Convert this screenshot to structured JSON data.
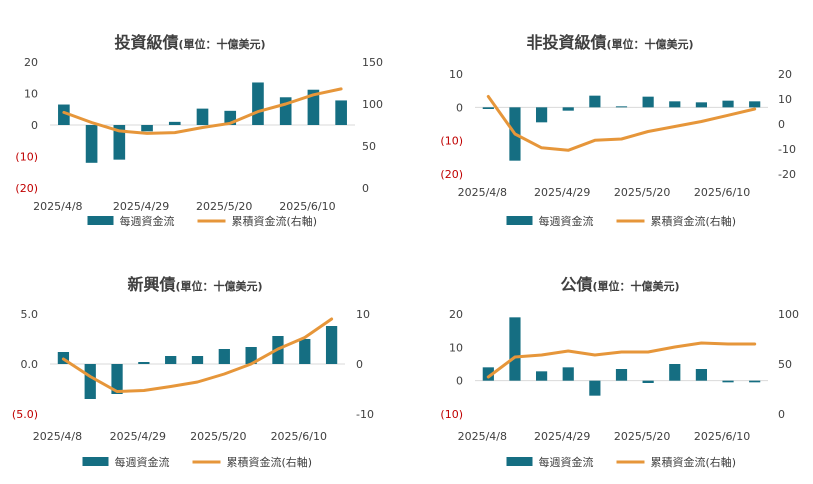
{
  "colors": {
    "bar": "#156E82",
    "line": "#E6963A",
    "text": "#404040",
    "negative_tick": "#C00000",
    "axis": "#D9D9D9"
  },
  "legend": {
    "bar_label": "每週資金流",
    "line_label": "累積資金流(右軸)"
  },
  "chart_data": [
    {
      "type": "bar+line",
      "title": "投資級債",
      "subtitle": "(單位：十億美元)",
      "x_tick_labels": [
        "2025/4/8",
        "2025/4/29",
        "2025/5/20",
        "2025/6/10"
      ],
      "left_axis": {
        "ylim": [
          -20,
          20
        ],
        "ticks": [
          "20",
          "10",
          "0",
          "(10)",
          "(20)"
        ]
      },
      "right_axis": {
        "ylim": [
          0,
          150
        ],
        "ticks": [
          "150",
          "100",
          "50",
          "0"
        ]
      },
      "series": [
        {
          "name": "每週資金流",
          "type": "bar",
          "axis": "left",
          "values": [
            6.5,
            -12.0,
            -11.0,
            -2.0,
            1.0,
            5.2,
            4.5,
            13.5,
            8.8,
            11.2,
            7.8
          ]
        },
        {
          "name": "累積資金流(右軸)",
          "type": "line",
          "axis": "right",
          "values": [
            90,
            78,
            68,
            65,
            66,
            72,
            77,
            91,
            100,
            111,
            118
          ]
        }
      ]
    },
    {
      "type": "bar+line",
      "title": "非投資級債",
      "subtitle": "(單位：十億美元)",
      "x_tick_labels": [
        "2025/4/8",
        "2025/4/29",
        "2025/5/20",
        "2025/6/10"
      ],
      "left_axis": {
        "ylim": [
          -20,
          10
        ],
        "ticks": [
          "10",
          "0",
          "(10)",
          "(20)"
        ]
      },
      "right_axis": {
        "ylim": [
          -20,
          20
        ],
        "ticks": [
          "20",
          "10",
          "0",
          "-10",
          "-20"
        ]
      },
      "series": [
        {
          "name": "每週資金流",
          "type": "bar",
          "axis": "left",
          "values": [
            -0.5,
            -16.0,
            -4.5,
            -1.0,
            3.5,
            0.3,
            3.2,
            1.8,
            1.5,
            2.0,
            1.8
          ]
        },
        {
          "name": "累積資金流(右軸)",
          "type": "line",
          "axis": "right",
          "values": [
            11,
            -4,
            -9.5,
            -10.5,
            -6.5,
            -6,
            -3,
            -1,
            1,
            3.5,
            6
          ]
        }
      ]
    },
    {
      "type": "bar+line",
      "title": "新興債",
      "subtitle": "(單位：十億美元)",
      "x_tick_labels": [
        "2025/4/8",
        "2025/4/29",
        "2025/5/20",
        "2025/6/10"
      ],
      "left_axis": {
        "ylim": [
          -5,
          5
        ],
        "ticks": [
          "5.0",
          "0.0",
          "(5.0)"
        ]
      },
      "right_axis": {
        "ylim": [
          -10,
          10
        ],
        "ticks": [
          "10",
          "0",
          "-10"
        ]
      },
      "series": [
        {
          "name": "每週資金流",
          "type": "bar",
          "axis": "left",
          "values": [
            1.2,
            -3.5,
            -3.0,
            0.2,
            0.8,
            0.8,
            1.5,
            1.7,
            2.8,
            2.5,
            3.8
          ]
        },
        {
          "name": "累積資金流(右軸)",
          "type": "line",
          "axis": "right",
          "values": [
            1.0,
            -2.5,
            -5.5,
            -5.3,
            -4.5,
            -3.6,
            -2.0,
            0.0,
            3.0,
            5.3,
            9.0
          ]
        }
      ]
    },
    {
      "type": "bar+line",
      "title": "公債",
      "subtitle": "(單位：十億美元)",
      "x_tick_labels": [
        "2025/4/8",
        "2025/4/29",
        "2025/5/20",
        "2025/6/10"
      ],
      "left_axis": {
        "ylim": [
          -10,
          20
        ],
        "ticks": [
          "20",
          "10",
          "0",
          "(10)"
        ]
      },
      "right_axis": {
        "ylim": [
          0,
          100
        ],
        "ticks": [
          "100",
          "50",
          "0"
        ]
      },
      "series": [
        {
          "name": "每週資金流",
          "type": "bar",
          "axis": "left",
          "values": [
            4.0,
            19.0,
            2.8,
            4.0,
            -4.5,
            3.5,
            -0.7,
            5.0,
            3.5,
            -0.5,
            -0.5
          ]
        },
        {
          "name": "累積資金流(右軸)",
          "type": "line",
          "axis": "right",
          "values": [
            37,
            57,
            59,
            63,
            59,
            62,
            62,
            67,
            71,
            70,
            70
          ]
        }
      ]
    }
  ]
}
